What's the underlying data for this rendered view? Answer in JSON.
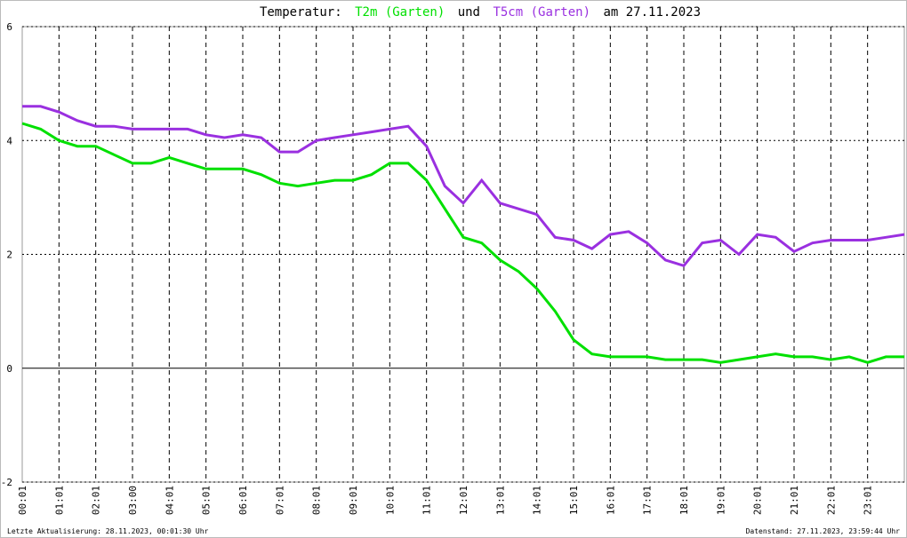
{
  "chart_data": {
    "type": "line",
    "title_prefix": "Temperatur:",
    "title_join": "und",
    "title_suffix": "am 27.11.2023",
    "footer_left": "Letzte Aktualisierung: 28.11.2023, 00:01:30 Uhr",
    "footer_right": "Datenstand: 27.11.2023, 23:59:44 Uhr",
    "x": [
      0,
      0.5,
      1,
      1.5,
      2,
      2.5,
      3,
      3.5,
      4,
      4.5,
      5,
      5.5,
      6,
      6.5,
      7,
      7.5,
      8,
      8.5,
      9,
      9.5,
      10,
      10.5,
      11,
      11.5,
      12,
      12.5,
      13,
      13.5,
      14,
      14.5,
      15,
      15.5,
      16,
      16.5,
      17,
      17.5,
      18,
      18.5,
      19,
      19.5,
      20,
      20.5,
      21,
      21.5,
      22,
      22.5,
      23,
      23.5,
      24
    ],
    "series": [
      {
        "name": "T2m (Garten)",
        "color": "#00e000",
        "values": [
          4.3,
          4.2,
          4.0,
          3.9,
          3.9,
          3.75,
          3.6,
          3.6,
          3.7,
          3.6,
          3.5,
          3.5,
          3.5,
          3.4,
          3.25,
          3.2,
          3.25,
          3.3,
          3.3,
          3.4,
          3.6,
          3.6,
          3.3,
          2.8,
          2.3,
          2.2,
          1.9,
          1.7,
          1.4,
          1.0,
          0.5,
          0.25,
          0.2,
          0.2,
          0.2,
          0.15,
          0.15,
          0.15,
          0.1,
          0.15,
          0.2,
          0.25,
          0.2,
          0.2,
          0.15,
          0.2,
          0.1,
          0.2,
          0.2
        ]
      },
      {
        "name": "T5cm (Garten)",
        "color": "#9a30e0",
        "values": [
          4.6,
          4.6,
          4.5,
          4.35,
          4.25,
          4.25,
          4.2,
          4.2,
          4.2,
          4.2,
          4.1,
          4.05,
          4.1,
          4.05,
          3.8,
          3.8,
          4.0,
          4.05,
          4.1,
          4.15,
          4.2,
          4.25,
          3.9,
          3.2,
          2.9,
          3.3,
          2.9,
          2.8,
          2.7,
          2.3,
          2.25,
          2.1,
          2.35,
          2.4,
          2.2,
          1.9,
          1.8,
          2.2,
          2.25,
          2.0,
          2.35,
          2.3,
          2.05,
          2.2,
          2.25,
          2.25,
          2.25,
          2.3,
          2.35
        ]
      }
    ],
    "xlim": [
      0,
      24
    ],
    "xticks": [
      {
        "value": 0,
        "label": "00:01"
      },
      {
        "value": 1,
        "label": "01:01"
      },
      {
        "value": 2,
        "label": "02:01"
      },
      {
        "value": 3,
        "label": "03:00"
      },
      {
        "value": 4,
        "label": "04:01"
      },
      {
        "value": 5,
        "label": "05:01"
      },
      {
        "value": 6,
        "label": "06:01"
      },
      {
        "value": 7,
        "label": "07:01"
      },
      {
        "value": 8,
        "label": "08:01"
      },
      {
        "value": 9,
        "label": "09:01"
      },
      {
        "value": 10,
        "label": "10:01"
      },
      {
        "value": 11,
        "label": "11:01"
      },
      {
        "value": 12,
        "label": "12:01"
      },
      {
        "value": 13,
        "label": "13:01"
      },
      {
        "value": 14,
        "label": "14:01"
      },
      {
        "value": 15,
        "label": "15:01"
      },
      {
        "value": 16,
        "label": "16:01"
      },
      {
        "value": 17,
        "label": "17:01"
      },
      {
        "value": 18,
        "label": "18:01"
      },
      {
        "value": 19,
        "label": "19:01"
      },
      {
        "value": 20,
        "label": "20:01"
      },
      {
        "value": 21,
        "label": "21:01"
      },
      {
        "value": 22,
        "label": "22:01"
      },
      {
        "value": 23,
        "label": "23:01"
      }
    ],
    "ylim": [
      -2,
      6
    ],
    "yticks": [
      -2,
      0,
      2,
      4,
      6
    ],
    "grid": true
  }
}
